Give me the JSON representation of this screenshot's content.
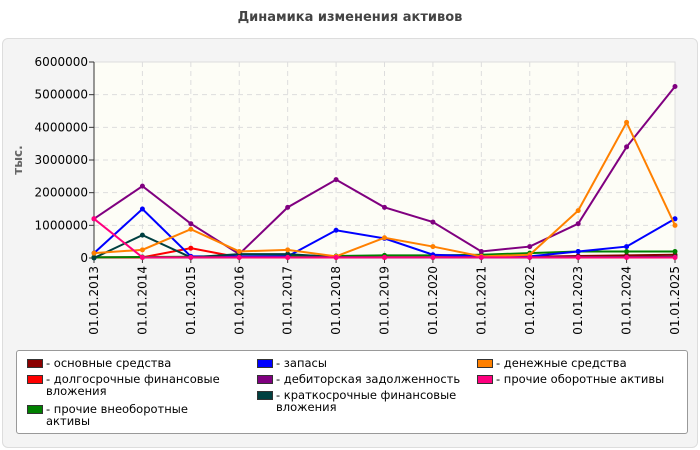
{
  "chart_data": {
    "type": "line",
    "title": "Динамика изменения активов",
    "ylabel": "тыс.",
    "ylim": [
      0,
      6000000
    ],
    "yticks": [
      "0",
      "1000000",
      "2000000",
      "3000000",
      "4000000",
      "5000000",
      "6000000"
    ],
    "categories": [
      "01.01.2013",
      "01.01.2014",
      "01.01.2015",
      "01.01.2016",
      "01.01.2017",
      "01.01.2018",
      "01.01.2019",
      "01.01.2020",
      "01.01.2021",
      "01.01.2022",
      "01.01.2023",
      "01.01.2024",
      "01.01.2025"
    ],
    "grid": true,
    "legend_position": "bottom",
    "series": [
      {
        "name": "- основные средства",
        "color": "#8b0000",
        "values": [
          20000,
          20000,
          20000,
          20000,
          20000,
          20000,
          20000,
          20000,
          30000,
          40000,
          60000,
          80000,
          100000
        ]
      },
      {
        "name": "- долгосрочные финансовые вложения",
        "color": "#ff0000",
        "values": [
          20000,
          20000,
          300000,
          20000,
          20000,
          20000,
          20000,
          20000,
          20000,
          20000,
          20000,
          20000,
          20000
        ]
      },
      {
        "name": "- прочие внеоборотные активы",
        "color": "#008000",
        "values": [
          20000,
          30000,
          40000,
          50000,
          60000,
          60000,
          80000,
          80000,
          100000,
          150000,
          200000,
          200000,
          200000
        ]
      },
      {
        "name": "- запасы",
        "color": "#0000ff",
        "values": [
          150000,
          1500000,
          50000,
          50000,
          50000,
          850000,
          600000,
          100000,
          50000,
          50000,
          200000,
          350000,
          1200000
        ]
      },
      {
        "name": "- дебиторская задолженность",
        "color": "#800080",
        "values": [
          1200000,
          2200000,
          1050000,
          120000,
          1550000,
          2400000,
          1550000,
          1100000,
          200000,
          350000,
          1050000,
          3400000,
          5250000
        ]
      },
      {
        "name": "- краткосрочные финансовые вложения",
        "color": "#004040",
        "values": [
          0,
          700000,
          20000,
          120000,
          120000,
          30000,
          20000,
          20000,
          20000,
          20000,
          30000,
          30000,
          40000
        ]
      },
      {
        "name": "- денежные средства",
        "color": "#ff8000",
        "values": [
          150000,
          250000,
          880000,
          200000,
          250000,
          50000,
          620000,
          350000,
          50000,
          100000,
          1450000,
          4150000,
          1000000
        ]
      },
      {
        "name": "- прочие оборотные активы",
        "color": "#ff007f",
        "values": [
          1200000,
          20000,
          20000,
          20000,
          20000,
          20000,
          20000,
          20000,
          20000,
          20000,
          20000,
          20000,
          20000
        ]
      }
    ]
  }
}
